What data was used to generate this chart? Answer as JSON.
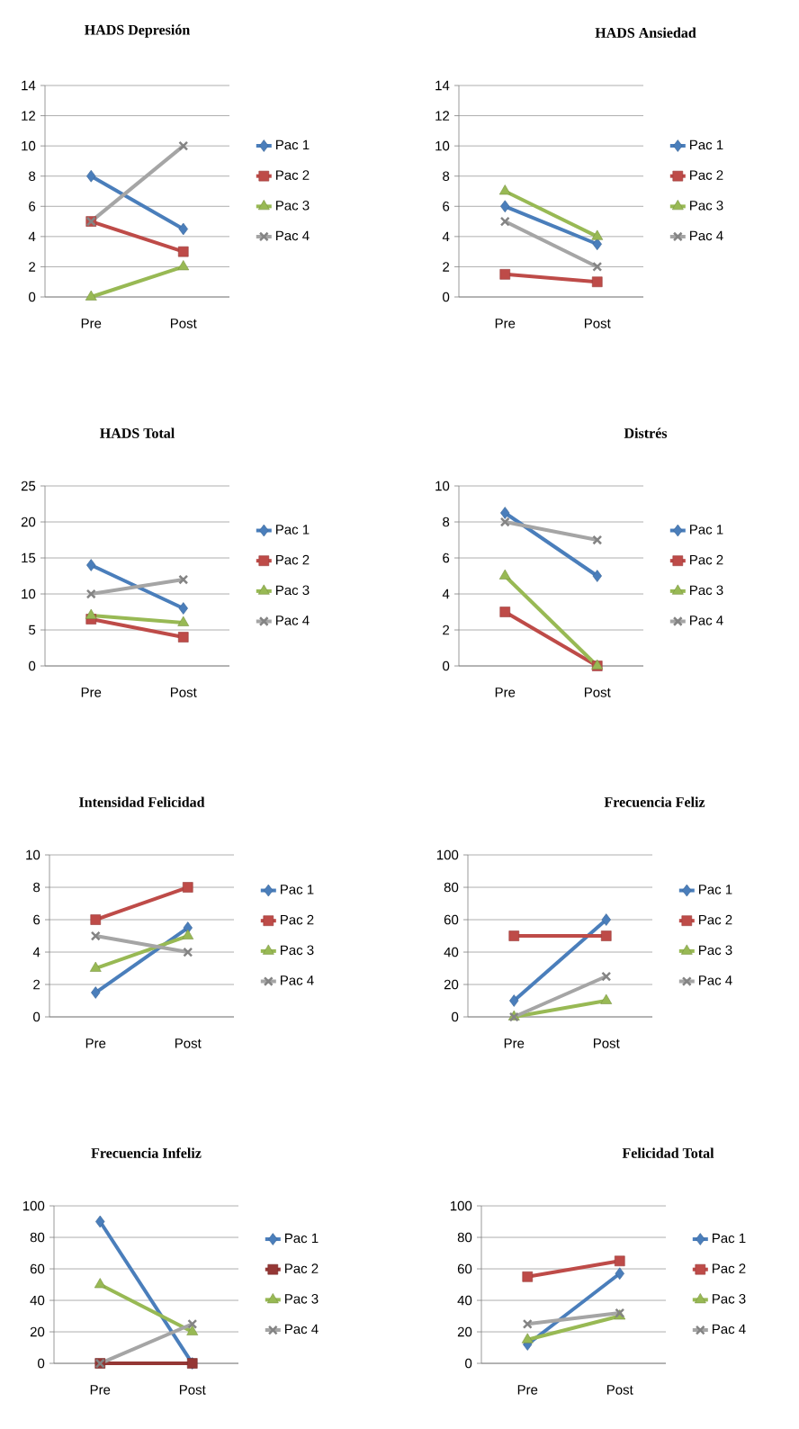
{
  "chart_data": [
    {
      "type": "line",
      "title": "HADS Depresión",
      "categories": [
        "Pre",
        "Post"
      ],
      "ylim": [
        0,
        14
      ],
      "yticks": [
        0,
        2,
        4,
        6,
        8,
        10,
        12,
        14
      ],
      "grid": "y",
      "legend": "right",
      "series": [
        {
          "name": "Pac 1",
          "color": "#4a7ebb",
          "marker": "diamond",
          "values": [
            8,
            4.5
          ]
        },
        {
          "name": "Pac 2",
          "color": "#be4b48",
          "marker": "square",
          "values": [
            5,
            3
          ]
        },
        {
          "name": "Pac 3",
          "color": "#98b954",
          "marker": "triangle",
          "values": [
            0,
            2
          ]
        },
        {
          "name": "Pac 4",
          "color": "#a5a5a5",
          "marker": "cross",
          "values": [
            5,
            10
          ]
        }
      ]
    },
    {
      "type": "line",
      "title": "HADS Ansiedad",
      "categories": [
        "Pre",
        "Post"
      ],
      "ylim": [
        0,
        14
      ],
      "yticks": [
        0,
        2,
        4,
        6,
        8,
        10,
        12,
        14
      ],
      "grid": "y",
      "legend": "right",
      "series": [
        {
          "name": "Pac 1",
          "color": "#4a7ebb",
          "marker": "diamond",
          "values": [
            6,
            3.5
          ]
        },
        {
          "name": "Pac 2",
          "color": "#be4b48",
          "marker": "square",
          "values": [
            1.5,
            1
          ]
        },
        {
          "name": "Pac 3",
          "color": "#98b954",
          "marker": "triangle",
          "values": [
            7,
            4
          ]
        },
        {
          "name": "Pac 4",
          "color": "#a5a5a5",
          "marker": "cross",
          "values": [
            5,
            2
          ]
        }
      ]
    },
    {
      "type": "line",
      "title": "HADS Total",
      "categories": [
        "Pre",
        "Post"
      ],
      "ylim": [
        0,
        25
      ],
      "yticks": [
        0,
        5,
        10,
        15,
        20,
        25
      ],
      "grid": "y",
      "legend": "right",
      "series": [
        {
          "name": "Pac 1",
          "color": "#4a7ebb",
          "marker": "diamond",
          "values": [
            14,
            8
          ]
        },
        {
          "name": "Pac 2",
          "color": "#be4b48",
          "marker": "square",
          "values": [
            6.5,
            4
          ]
        },
        {
          "name": "Pac 3",
          "color": "#98b954",
          "marker": "triangle",
          "values": [
            7,
            6
          ]
        },
        {
          "name": "Pac 4",
          "color": "#a5a5a5",
          "marker": "cross",
          "values": [
            10,
            12
          ]
        }
      ]
    },
    {
      "type": "line",
      "title": "Distrés",
      "categories": [
        "Pre",
        "Post"
      ],
      "ylim": [
        0,
        10
      ],
      "yticks": [
        0,
        2,
        4,
        6,
        8,
        10
      ],
      "grid": "y",
      "legend": "right",
      "series": [
        {
          "name": "Pac 1",
          "color": "#4a7ebb",
          "marker": "diamond",
          "values": [
            8.5,
            5
          ]
        },
        {
          "name": "Pac 2",
          "color": "#be4b48",
          "marker": "square",
          "values": [
            3,
            0
          ]
        },
        {
          "name": "Pac 3",
          "color": "#98b954",
          "marker": "triangle",
          "values": [
            5,
            0
          ]
        },
        {
          "name": "Pac 4",
          "color": "#a5a5a5",
          "marker": "cross",
          "values": [
            8,
            7
          ]
        }
      ]
    },
    {
      "type": "line",
      "title": "Intensidad Felicidad",
      "categories": [
        "Pre",
        "Post"
      ],
      "ylim": [
        0,
        10
      ],
      "yticks": [
        0,
        2,
        4,
        6,
        8,
        10
      ],
      "grid": "y",
      "legend": "right",
      "series": [
        {
          "name": "Pac 1",
          "color": "#4a7ebb",
          "marker": "diamond",
          "values": [
            1.5,
            5.5
          ]
        },
        {
          "name": "Pac 2",
          "color": "#be4b48",
          "marker": "square",
          "values": [
            6,
            8
          ]
        },
        {
          "name": "Pac 3",
          "color": "#98b954",
          "marker": "triangle",
          "values": [
            3,
            5
          ]
        },
        {
          "name": "Pac 4",
          "color": "#a5a5a5",
          "marker": "cross",
          "values": [
            5,
            4
          ]
        }
      ]
    },
    {
      "type": "line",
      "title": "Frecuencia Feliz",
      "categories": [
        "Pre",
        "Post"
      ],
      "ylim": [
        0,
        100
      ],
      "yticks": [
        0,
        20,
        40,
        60,
        80,
        100
      ],
      "grid": "y",
      "legend": "right",
      "series": [
        {
          "name": "Pac 1",
          "color": "#4a7ebb",
          "marker": "diamond",
          "values": [
            10,
            60
          ]
        },
        {
          "name": "Pac 2",
          "color": "#be4b48",
          "marker": "square",
          "values": [
            50,
            50
          ]
        },
        {
          "name": "Pac 3",
          "color": "#98b954",
          "marker": "triangle",
          "values": [
            0,
            10
          ]
        },
        {
          "name": "Pac 4",
          "color": "#a5a5a5",
          "marker": "cross",
          "values": [
            0,
            25
          ]
        }
      ]
    },
    {
      "type": "line",
      "title": "Frecuencia Infeliz",
      "categories": [
        "Pre",
        "Post"
      ],
      "ylim": [
        0,
        100
      ],
      "yticks": [
        0,
        20,
        40,
        60,
        80,
        100
      ],
      "grid": "y",
      "legend": "right",
      "series": [
        {
          "name": "Pac 1",
          "color": "#4a7ebb",
          "marker": "diamond",
          "values": [
            90,
            0
          ]
        },
        {
          "name": "Pac 2",
          "color": "#953735",
          "marker": "square",
          "values": [
            0,
            0
          ]
        },
        {
          "name": "Pac 3",
          "color": "#98b954",
          "marker": "triangle",
          "values": [
            50,
            20
          ]
        },
        {
          "name": "Pac 4",
          "color": "#a5a5a5",
          "marker": "cross",
          "values": [
            0,
            25
          ]
        }
      ]
    },
    {
      "type": "line",
      "title": "Felicidad Total",
      "categories": [
        "Pre",
        "Post"
      ],
      "ylim": [
        0,
        100
      ],
      "yticks": [
        0,
        20,
        40,
        60,
        80,
        100
      ],
      "grid": "y",
      "legend": "right",
      "series": [
        {
          "name": "Pac 1",
          "color": "#4a7ebb",
          "marker": "diamond",
          "values": [
            12,
            57
          ]
        },
        {
          "name": "Pac 2",
          "color": "#be4b48",
          "marker": "square",
          "values": [
            55,
            65
          ]
        },
        {
          "name": "Pac 3",
          "color": "#98b954",
          "marker": "triangle",
          "values": [
            15,
            30
          ]
        },
        {
          "name": "Pac 4",
          "color": "#a5a5a5",
          "marker": "cross",
          "values": [
            25,
            32
          ]
        }
      ]
    }
  ]
}
